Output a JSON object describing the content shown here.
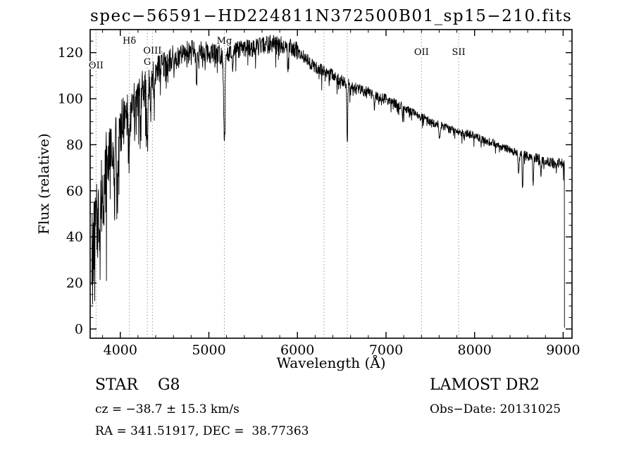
{
  "chart_data": {
    "type": "line",
    "title": "spec−56591−HD224811N372500B01_sp15−210.fits",
    "xlabel": "Wavelength (Å)",
    "ylabel": "Flux (relative)",
    "xlim": [
      3660,
      9100
    ],
    "ylim": [
      -4,
      130
    ],
    "xticks": [
      4000,
      5000,
      6000,
      7000,
      8000,
      9000
    ],
    "yticks": [
      0,
      20,
      40,
      60,
      80,
      100,
      120
    ],
    "x_minor_step": 200,
    "y_minor_step": 5,
    "grid": false,
    "legend": false,
    "line_color": "#000000",
    "feature_line_color": "#9a9a9a",
    "background": "#ffffff",
    "spectral_lines": [
      {
        "label": "OII",
        "wavelength": 3727,
        "label_dy": 55
      },
      {
        "label": "Hδ",
        "wavelength": 4102,
        "label_dy": 20
      },
      {
        "label": "G",
        "wavelength": 4305,
        "label_dy": 50
      },
      {
        "label": "OIII",
        "wavelength": 4363,
        "label_dy": 34
      },
      {
        "label": "Mg",
        "wavelength": 5175,
        "label_dy": 20
      },
      {
        "label": "",
        "wavelength": 6300,
        "label_dy": 0
      },
      {
        "label": "",
        "wavelength": 6563,
        "label_dy": 0
      },
      {
        "label": "OII",
        "wavelength": 7400,
        "label_dy": 36
      },
      {
        "label": "SII",
        "wavelength": 7820,
        "label_dy": 36
      }
    ],
    "x_start": 3676,
    "x_end": 9015,
    "x_step": 3,
    "noise_seed": 7,
    "continuum": [
      [
        3680,
        34
      ],
      [
        3740,
        46
      ],
      [
        3800,
        60
      ],
      [
        3860,
        73
      ],
      [
        3920,
        83
      ],
      [
        3980,
        86
      ],
      [
        4060,
        92
      ],
      [
        4140,
        97
      ],
      [
        4220,
        102
      ],
      [
        4300,
        107
      ],
      [
        4380,
        111
      ],
      [
        4460,
        114
      ],
      [
        4540,
        116
      ],
      [
        4620,
        117
      ],
      [
        4700,
        119
      ],
      [
        4800,
        121
      ],
      [
        4900,
        120
      ],
      [
        5000,
        120
      ],
      [
        5100,
        120
      ],
      [
        5200,
        119
      ],
      [
        5300,
        121
      ],
      [
        5400,
        122
      ],
      [
        5500,
        122
      ],
      [
        5600,
        123
      ],
      [
        5700,
        124
      ],
      [
        5800,
        124
      ],
      [
        5900,
        123
      ],
      [
        6000,
        121
      ],
      [
        6100,
        117
      ],
      [
        6200,
        114
      ],
      [
        6300,
        112
      ],
      [
        6400,
        110
      ],
      [
        6500,
        108
      ],
      [
        6600,
        106
      ],
      [
        6700,
        104
      ],
      [
        6800,
        103
      ],
      [
        6900,
        101
      ],
      [
        7000,
        100
      ],
      [
        7100,
        98
      ],
      [
        7200,
        96
      ],
      [
        7300,
        94
      ],
      [
        7400,
        92
      ],
      [
        7500,
        90
      ],
      [
        7600,
        89
      ],
      [
        7700,
        87
      ],
      [
        7800,
        86
      ],
      [
        7900,
        85
      ],
      [
        8000,
        84
      ],
      [
        8100,
        82
      ],
      [
        8200,
        81
      ],
      [
        8300,
        79
      ],
      [
        8400,
        78
      ],
      [
        8500,
        76
      ],
      [
        8600,
        75
      ],
      [
        8700,
        74
      ],
      [
        8800,
        73
      ],
      [
        8900,
        72
      ],
      [
        9000,
        72
      ],
      [
        9020,
        71
      ]
    ],
    "noise": [
      [
        3660,
        3850,
        19
      ],
      [
        3850,
        4050,
        11
      ],
      [
        4050,
        4350,
        9
      ],
      [
        4350,
        4600,
        6.5
      ],
      [
        4600,
        5200,
        5
      ],
      [
        5200,
        6000,
        3.8
      ],
      [
        6000,
        6600,
        2.8
      ],
      [
        6600,
        7200,
        2.2
      ],
      [
        7200,
        8000,
        1.8
      ],
      [
        8000,
        8500,
        1.7
      ],
      [
        8500,
        9030,
        2.3
      ]
    ],
    "absorption": [
      [
        3934,
        30,
        7
      ],
      [
        3969,
        26,
        7
      ],
      [
        4102,
        22,
        6
      ],
      [
        4227,
        12,
        4
      ],
      [
        4305,
        28,
        7
      ],
      [
        4341,
        20,
        5
      ],
      [
        4383,
        12,
        4
      ],
      [
        4861,
        16,
        5
      ],
      [
        5175,
        36,
        8
      ],
      [
        5270,
        10,
        5
      ],
      [
        5893,
        12,
        5
      ],
      [
        6563,
        26,
        5
      ],
      [
        6867,
        6,
        5
      ],
      [
        7186,
        5,
        5
      ],
      [
        7605,
        7,
        7
      ],
      [
        8498,
        9,
        5
      ],
      [
        8542,
        14,
        5
      ],
      [
        8662,
        13,
        5
      ],
      [
        8750,
        6,
        5
      ]
    ]
  },
  "annotations": {
    "class_label": "STAR    G8",
    "survey": "LAMOST DR2",
    "velocity": "cz = −38.7 ± 15.3 km/s",
    "obs_date": "Obs−Date: 20131025",
    "coords": "RA = 341.51917, DEC =  38.77363"
  }
}
